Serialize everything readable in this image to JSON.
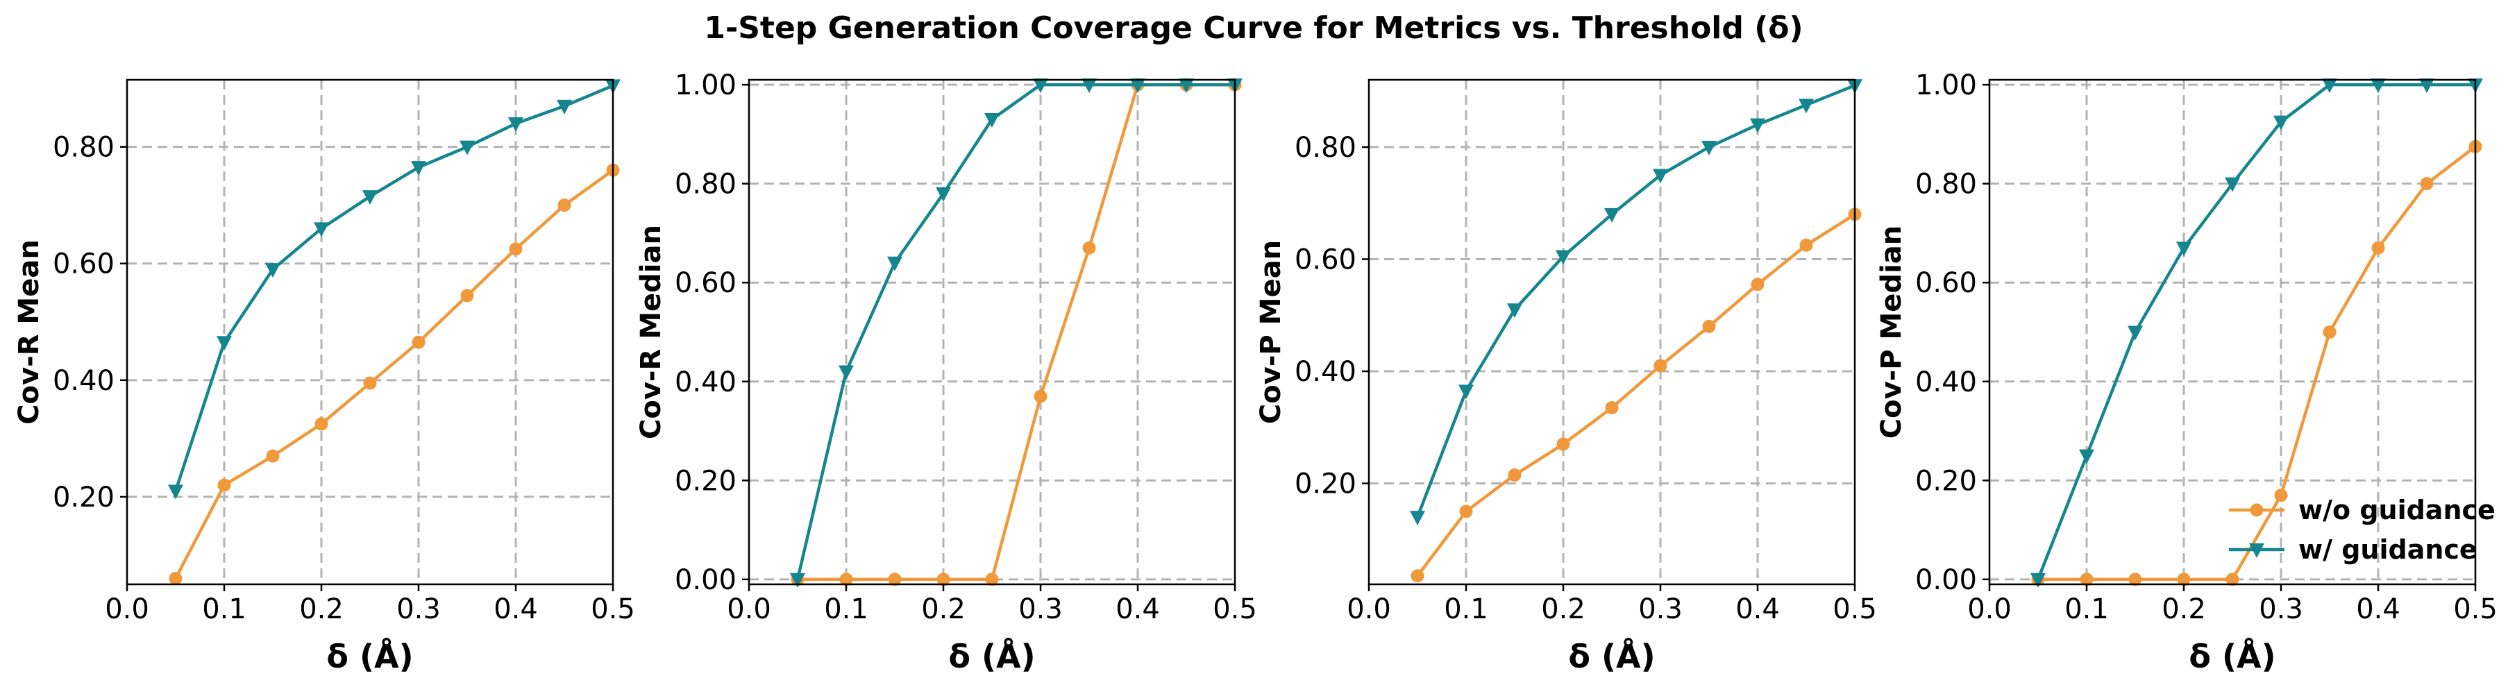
{
  "figure": {
    "title": "1-Step Generation Coverage Curve for Metrics vs. Threshold (δ)"
  },
  "colors": {
    "wo": "#F0993A",
    "w": "#15868E",
    "grid": "#b3b3b3"
  },
  "legend": {
    "placement": "lower-right",
    "panel": 3,
    "items": [
      "w/o guidance",
      "w/ guidance"
    ]
  },
  "chart_data": [
    {
      "type": "line",
      "title": "",
      "xlabel": "δ (Å)",
      "ylabel": "Cov-R Mean",
      "xlim": [
        0.0,
        0.5
      ],
      "ylim": [
        0.05,
        0.915
      ],
      "xticks": [
        0.0,
        0.1,
        0.2,
        0.3,
        0.4,
        0.5
      ],
      "xtick_labels": [
        "0.0",
        "0.1",
        "0.2",
        "0.3",
        "0.4",
        "0.5"
      ],
      "yticks": [
        0.2,
        0.4,
        0.6,
        0.8
      ],
      "ytick_labels": [
        "0.20",
        "0.40",
        "0.60",
        "0.80"
      ],
      "x": [
        0.05,
        0.1,
        0.15,
        0.2,
        0.25,
        0.3,
        0.35,
        0.4,
        0.45,
        0.5
      ],
      "series": [
        {
          "name": "w/o guidance",
          "marker": "circle",
          "values": [
            0.06,
            0.22,
            0.27,
            0.325,
            0.395,
            0.465,
            0.545,
            0.625,
            0.7,
            0.76
          ]
        },
        {
          "name": "w/ guidance",
          "marker": "triangle-down",
          "values": [
            0.21,
            0.465,
            0.59,
            0.66,
            0.715,
            0.765,
            0.8,
            0.84,
            0.87,
            0.905
          ]
        }
      ]
    },
    {
      "type": "line",
      "title": "",
      "xlabel": "δ (Å)",
      "ylabel": "Cov-R Median",
      "xlim": [
        0.0,
        0.5
      ],
      "ylim": [
        -0.01,
        1.01
      ],
      "xticks": [
        0.0,
        0.1,
        0.2,
        0.3,
        0.4,
        0.5
      ],
      "xtick_labels": [
        "0.0",
        "0.1",
        "0.2",
        "0.3",
        "0.4",
        "0.5"
      ],
      "yticks": [
        0.0,
        0.2,
        0.4,
        0.6,
        0.8,
        1.0
      ],
      "ytick_labels": [
        "0.00",
        "0.20",
        "0.40",
        "0.60",
        "0.80",
        "1.00"
      ],
      "x": [
        0.05,
        0.1,
        0.15,
        0.2,
        0.25,
        0.3,
        0.35,
        0.4,
        0.45,
        0.5
      ],
      "series": [
        {
          "name": "w/o guidance",
          "marker": "circle",
          "values": [
            0.0,
            0.0,
            0.0,
            0.0,
            0.0,
            0.37,
            0.67,
            1.0,
            1.0,
            1.0
          ]
        },
        {
          "name": "w/ guidance",
          "marker": "triangle-down",
          "values": [
            0.0,
            0.42,
            0.64,
            0.78,
            0.93,
            1.0,
            1.0,
            1.0,
            1.0,
            1.0
          ]
        }
      ]
    },
    {
      "type": "line",
      "title": "",
      "xlabel": "δ (Å)",
      "ylabel": "Cov-P Mean",
      "xlim": [
        0.0,
        0.5
      ],
      "ylim": [
        0.02,
        0.92
      ],
      "xticks": [
        0.0,
        0.1,
        0.2,
        0.3,
        0.4,
        0.5
      ],
      "xtick_labels": [
        "0.0",
        "0.1",
        "0.2",
        "0.3",
        "0.4",
        "0.5"
      ],
      "yticks": [
        0.2,
        0.4,
        0.6,
        0.8
      ],
      "ytick_labels": [
        "0.20",
        "0.40",
        "0.60",
        "0.80"
      ],
      "x": [
        0.05,
        0.1,
        0.15,
        0.2,
        0.25,
        0.3,
        0.35,
        0.4,
        0.45,
        0.5
      ],
      "series": [
        {
          "name": "w/o guidance",
          "marker": "circle",
          "values": [
            0.035,
            0.15,
            0.215,
            0.27,
            0.335,
            0.41,
            0.48,
            0.555,
            0.625,
            0.68
          ]
        },
        {
          "name": "w/ guidance",
          "marker": "triangle-down",
          "values": [
            0.14,
            0.365,
            0.51,
            0.605,
            0.68,
            0.75,
            0.8,
            0.84,
            0.875,
            0.91
          ]
        }
      ]
    },
    {
      "type": "line",
      "title": "",
      "xlabel": "δ (Å)",
      "ylabel": "Cov-P Median",
      "xlim": [
        0.0,
        0.5
      ],
      "ylim": [
        -0.01,
        1.01
      ],
      "xticks": [
        0.0,
        0.1,
        0.2,
        0.3,
        0.4,
        0.5
      ],
      "xtick_labels": [
        "0.0",
        "0.1",
        "0.2",
        "0.3",
        "0.4",
        "0.5"
      ],
      "yticks": [
        0.0,
        0.2,
        0.4,
        0.6,
        0.8,
        1.0
      ],
      "ytick_labels": [
        "0.00",
        "0.20",
        "0.40",
        "0.60",
        "0.80",
        "1.00"
      ],
      "x": [
        0.05,
        0.1,
        0.15,
        0.2,
        0.25,
        0.3,
        0.35,
        0.4,
        0.45,
        0.5
      ],
      "series": [
        {
          "name": "w/o guidance",
          "marker": "circle",
          "values": [
            0.0,
            0.0,
            0.0,
            0.0,
            0.0,
            0.17,
            0.5,
            0.67,
            0.8,
            0.875
          ]
        },
        {
          "name": "w/ guidance",
          "marker": "triangle-down",
          "values": [
            0.0,
            0.25,
            0.5,
            0.67,
            0.8,
            0.925,
            1.0,
            1.0,
            1.0,
            1.0
          ]
        }
      ]
    }
  ]
}
